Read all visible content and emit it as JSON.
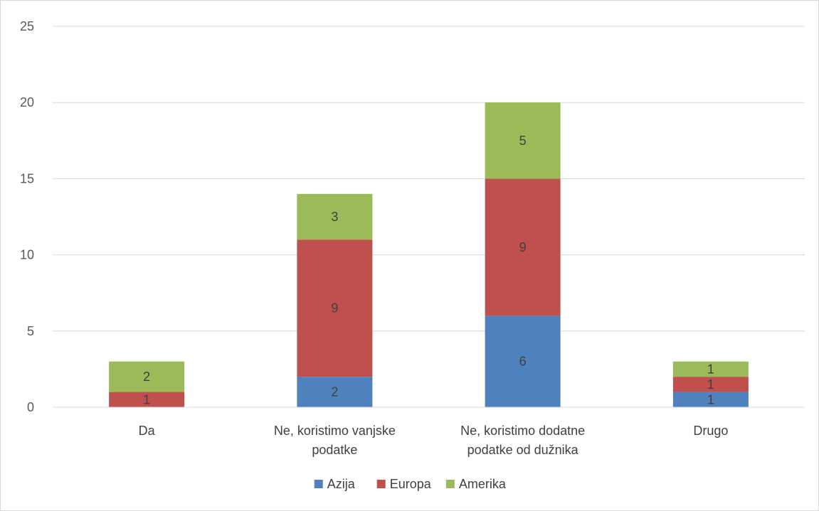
{
  "chart_data": {
    "type": "bar",
    "stacked": true,
    "categories": [
      [
        "Da"
      ],
      [
        "Ne, koristimo vanjske",
        "podatke"
      ],
      [
        "Ne, koristimo dodatne",
        "podatke od dužnika"
      ],
      [
        "Drugo"
      ]
    ],
    "series": [
      {
        "name": "Azija",
        "color": "#4f81bd",
        "values": [
          0,
          2,
          6,
          1
        ]
      },
      {
        "name": "Europa",
        "color": "#c0504d",
        "values": [
          1,
          9,
          9,
          1
        ]
      },
      {
        "name": "Amerika",
        "color": "#9bbb59",
        "values": [
          2,
          3,
          5,
          1
        ]
      }
    ],
    "ylim": [
      0,
      25
    ],
    "yticks": [
      0,
      5,
      10,
      15,
      20,
      25
    ],
    "grid": true,
    "legend_position": "bottom",
    "data_labels": true,
    "gridline_color": "#d9d9d9"
  }
}
